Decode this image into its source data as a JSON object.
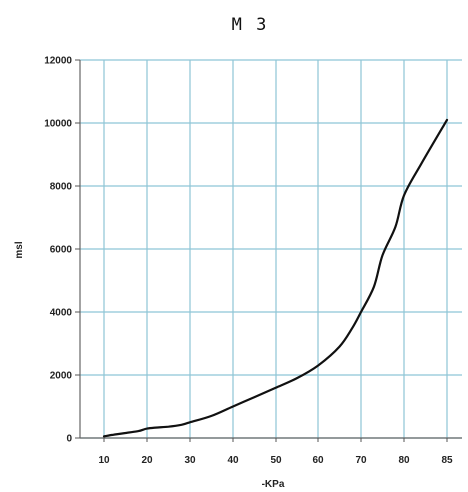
{
  "chart_data": {
    "type": "line",
    "title": "M 3",
    "xlabel": "-KPa",
    "ylabel": "msl",
    "x_ticks": [
      "10",
      "20",
      "30",
      "40",
      "50",
      "60",
      "70",
      "80",
      "85"
    ],
    "y_ticks": [
      "0",
      "2000",
      "4000",
      "6000",
      "8000",
      "10000",
      "12000"
    ],
    "ylim": [
      0,
      12000
    ],
    "grid": true,
    "grid_color": "#8ec5d6",
    "line_color": "#111111",
    "series": [
      {
        "x": [
          10,
          12,
          15,
          18,
          20,
          22,
          25,
          28,
          30,
          35,
          40,
          45,
          50,
          55,
          60,
          65,
          68,
          70,
          73,
          75,
          78,
          80,
          82,
          85
        ],
        "values": [
          50,
          100,
          160,
          220,
          300,
          330,
          360,
          420,
          500,
          700,
          1000,
          1300,
          1600,
          1900,
          2300,
          2900,
          3500,
          4000,
          4800,
          5800,
          6700,
          7700,
          8700,
          10100
        ]
      }
    ]
  }
}
